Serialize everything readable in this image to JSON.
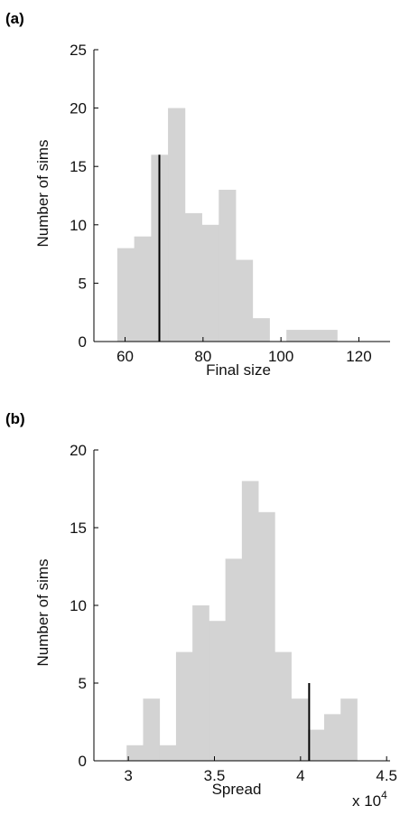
{
  "chart_data": [
    {
      "type": "bar",
      "panel_label": "(a)",
      "xlabel": "Final size",
      "ylabel": "Number of sims",
      "xlim": [
        52,
        128
      ],
      "ylim": [
        0,
        25
      ],
      "xticks": [
        60,
        80,
        100,
        120
      ],
      "yticks": [
        0,
        5,
        10,
        15,
        20,
        25
      ],
      "bin_width": 4.34,
      "bin_edges_start": 58,
      "values": [
        8,
        9,
        16,
        20,
        11,
        10,
        13,
        7,
        2,
        0,
        1,
        1,
        1
      ],
      "marker_x": 68.8,
      "marker_height": 16,
      "bar_color": "#d3d3d3",
      "marker_color": "#000000"
    },
    {
      "type": "bar",
      "panel_label": "(b)",
      "xlabel": "Spread",
      "ylabel": "Number of sims",
      "axis_multiplier": "x 10",
      "axis_multiplier_exponent": "4",
      "xlim": [
        2.8,
        4.52
      ],
      "ylim": [
        0,
        20
      ],
      "xticks": [
        3,
        3.5,
        4,
        4.5
      ],
      "xtick_labels": [
        "3",
        "3.5",
        "4",
        "4.5"
      ],
      "yticks": [
        0,
        5,
        10,
        15,
        20
      ],
      "bin_width": 0.0956,
      "bin_edges_start": 2.99,
      "values": [
        1,
        4,
        1,
        7,
        10,
        9,
        13,
        18,
        16,
        7,
        4,
        2,
        3,
        4
      ],
      "marker_x": 4.05,
      "marker_height": 5,
      "bar_color": "#d3d3d3",
      "marker_color": "#000000"
    }
  ]
}
